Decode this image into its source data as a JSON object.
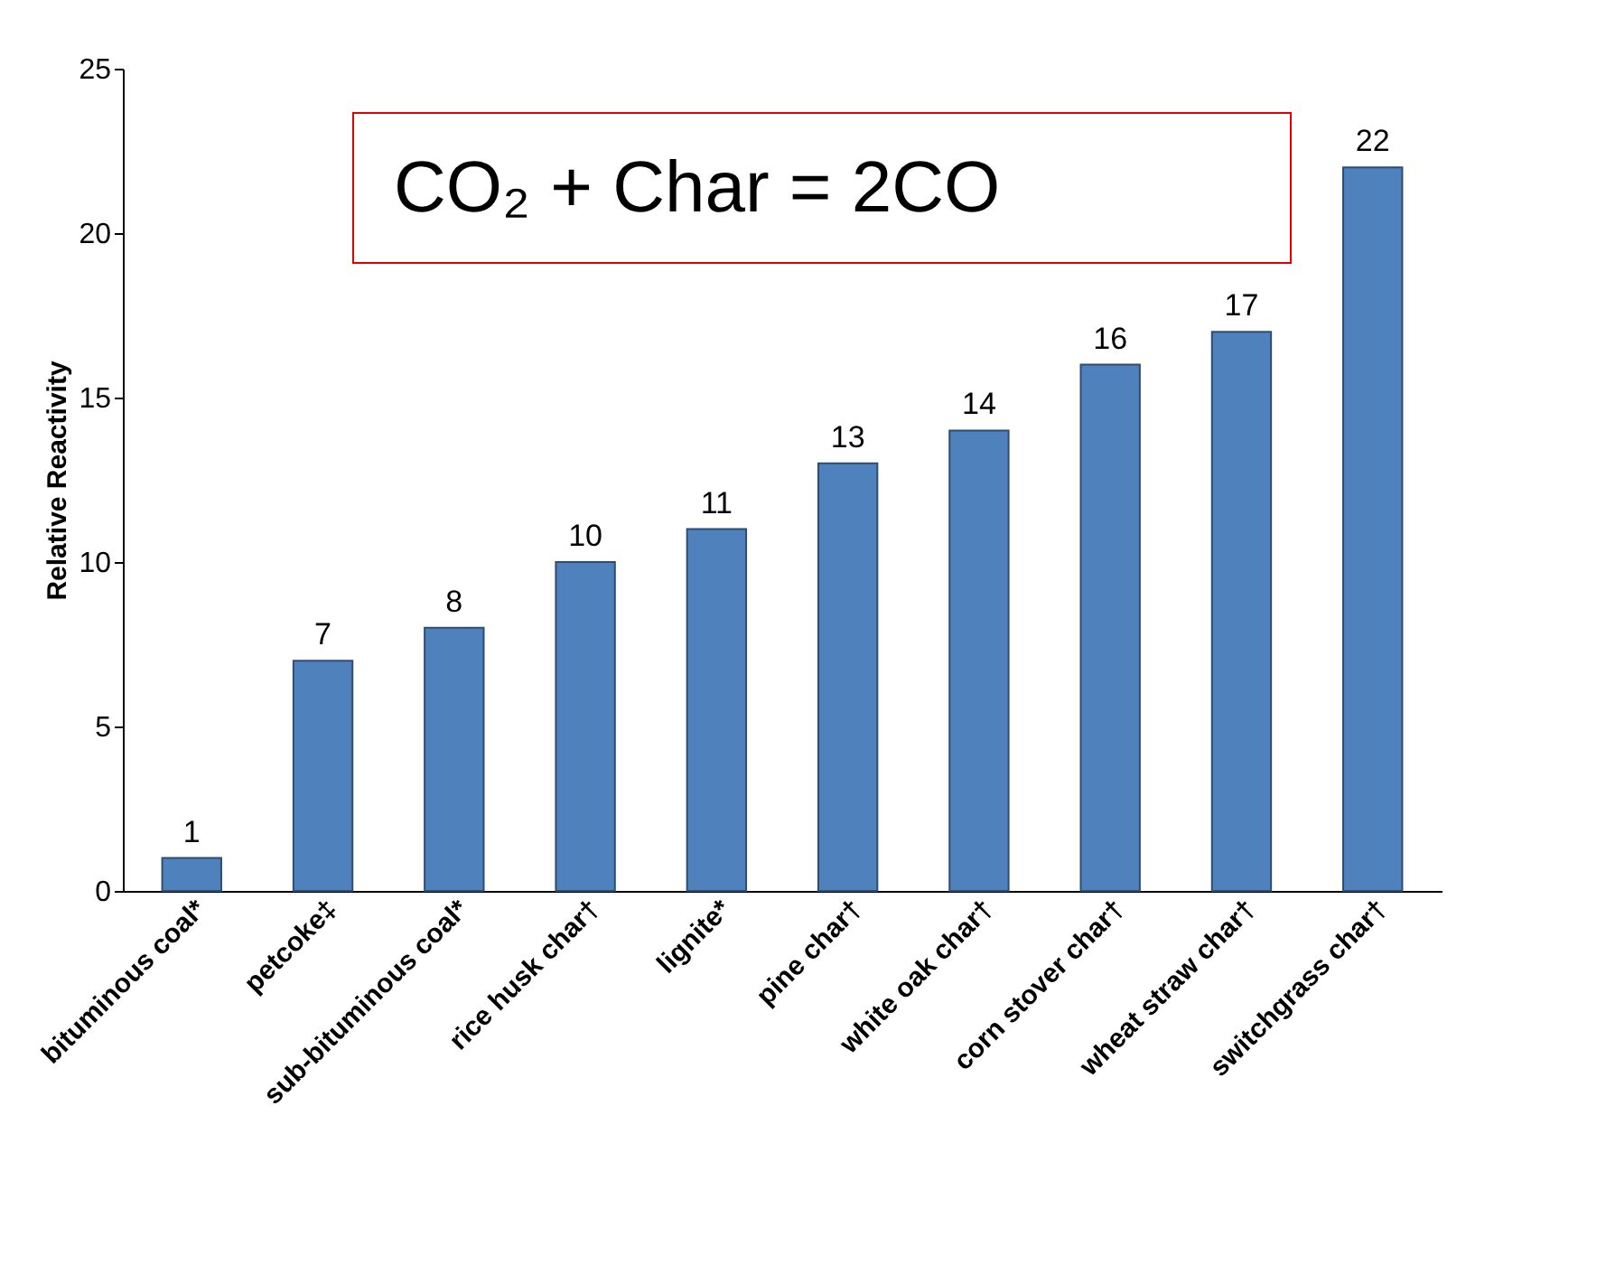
{
  "chart_data": {
    "type": "bar",
    "ylabel": "Relative Reactivity",
    "categories": [
      "bituminous coal*",
      "petcoke‡",
      "sub-bituminous coal*",
      "rice husk char†",
      "lignite*",
      "pine char†",
      "white oak char†",
      "corn stover char†",
      "wheat straw char†",
      "switchgrass char†"
    ],
    "values": [
      1,
      7,
      8,
      10,
      11,
      13,
      14,
      16,
      17,
      22
    ],
    "color": "#4f81bd",
    "ylim": [
      0,
      25
    ],
    "yticks": [
      0,
      5,
      10,
      15,
      20,
      25
    ],
    "data_labels": true,
    "grid": false,
    "annotations": [
      "CO₂ + Char = 2CO"
    ]
  }
}
